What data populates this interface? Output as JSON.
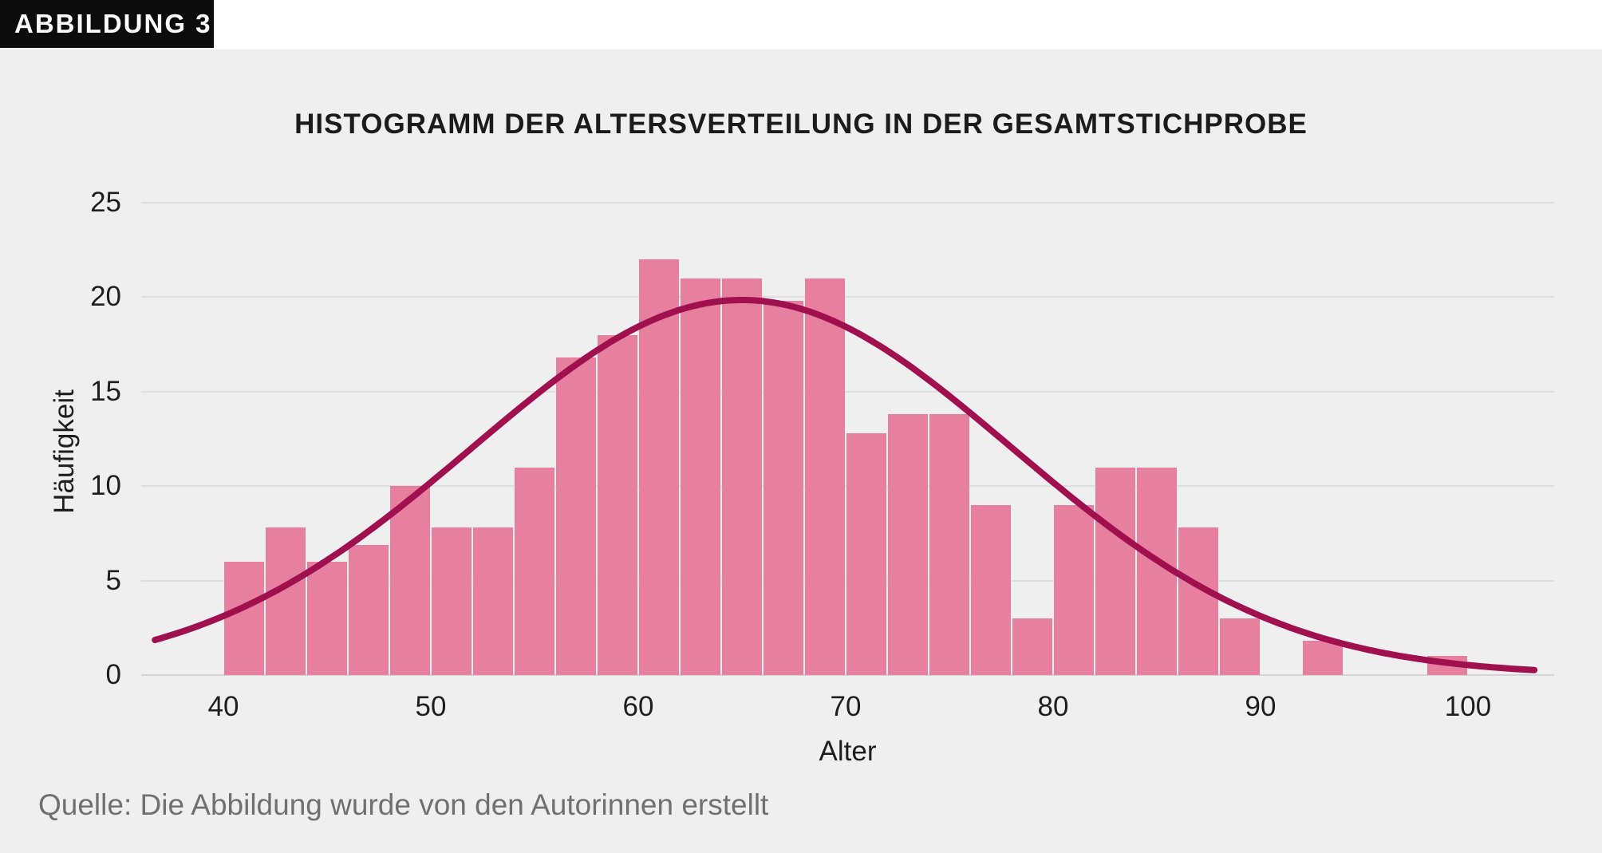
{
  "figure_tag": "ABBILDUNG 3",
  "source_note": "Quelle: Die Abbildung wurde von den Autorinnen erstellt",
  "chart_data": {
    "type": "bar",
    "subtype": "histogram-with-normal-curve",
    "title": "HISTOGRAMM DER ALTERSVERTEILUNG IN DER GESAMTSTICHPROBE",
    "xlabel": "Alter",
    "ylabel": "Häufigkeit",
    "bin_width_years": 2,
    "bin_start_ages": [
      40,
      42,
      44,
      46,
      48,
      50,
      52,
      54,
      56,
      58,
      60,
      62,
      64,
      66,
      68,
      70,
      72,
      74,
      76,
      78,
      80,
      82,
      84,
      86,
      88,
      90,
      92,
      94,
      96,
      98
    ],
    "frequencies": [
      6,
      7.8,
      6,
      6.9,
      10,
      7.8,
      7.8,
      11,
      16.8,
      18,
      22,
      21,
      21,
      19.8,
      21,
      12.8,
      13.8,
      13.8,
      9,
      3,
      9,
      11,
      11,
      7.8,
      3,
      0,
      1.8,
      0,
      0,
      1
    ],
    "xticks": [
      40,
      50,
      60,
      70,
      80,
      90,
      100
    ],
    "yticks": [
      25,
      20,
      15,
      10,
      5,
      0
    ],
    "ylim": [
      0,
      25
    ],
    "xlim": [
      36.7,
      103.3
    ],
    "grid": "horizontal",
    "legend": "none",
    "normal_curve": {
      "mean": 65,
      "sd": 13,
      "peak": 19.85,
      "x_start": 36.7,
      "x_end": 103.3
    },
    "colors": {
      "bar": "#e6809e",
      "curve": "#a1104e",
      "panel_background": "#f0efef",
      "gridline": "#dfdede",
      "axis_line": "#d5d4d4",
      "text": "#1e1e1e",
      "source_text": "#707070",
      "tag_background": "#0c0c0c",
      "tag_text": "#ffffff"
    }
  }
}
